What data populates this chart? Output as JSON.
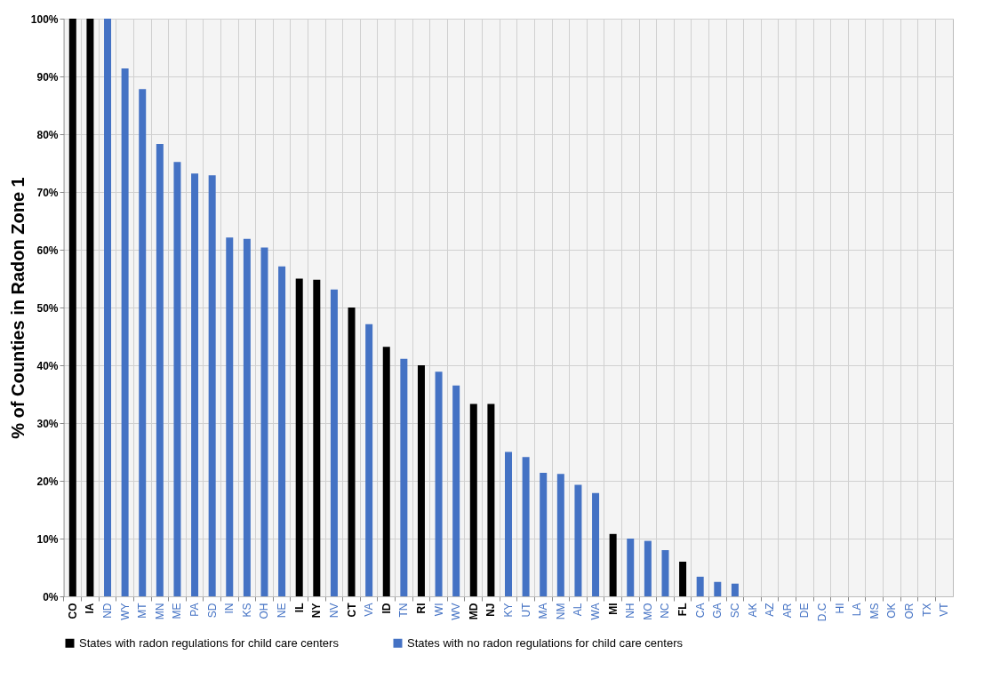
{
  "chart_data": {
    "type": "bar",
    "ylabel": "% of Counties in Radon Zone 1",
    "categories": [
      "CO",
      "IA",
      "ND",
      "WY",
      "MT",
      "MN",
      "ME",
      "PA",
      "SD",
      "IN",
      "KS",
      "OH",
      "NE",
      "IL",
      "NY",
      "NV",
      "CT",
      "VA",
      "ID",
      "TN",
      "RI",
      "WI",
      "WV",
      "MD",
      "NJ",
      "KY",
      "UT",
      "MA",
      "NM",
      "AL",
      "WA",
      "MI",
      "NH",
      "MO",
      "NC",
      "FL",
      "CA",
      "GA",
      "SC",
      "AK",
      "AZ",
      "AR",
      "DE",
      "D.C",
      "HI",
      "LA",
      "MS",
      "OK",
      "OR",
      "TX",
      "VT"
    ],
    "series": [
      {
        "name": "States with radon regulations for child care centers",
        "color": "#000000",
        "values": [
          100,
          100,
          null,
          null,
          null,
          null,
          null,
          null,
          null,
          null,
          null,
          null,
          null,
          55,
          54.8,
          null,
          50,
          null,
          43.2,
          null,
          40,
          null,
          null,
          33.3,
          33.3,
          null,
          null,
          null,
          null,
          null,
          null,
          10.8,
          null,
          null,
          null,
          6,
          null,
          null,
          null,
          null,
          null,
          null,
          null,
          null,
          null,
          null,
          null,
          null,
          null,
          null,
          null
        ]
      },
      {
        "name": "States with no radon regulations for child care centers",
        "color": "#4472c4",
        "values": [
          null,
          null,
          100,
          91.4,
          87.8,
          78.3,
          75.2,
          73.2,
          72.9,
          62.1,
          61.9,
          60.4,
          57.1,
          null,
          null,
          53.1,
          null,
          47.1,
          null,
          41.1,
          null,
          38.9,
          36.5,
          null,
          null,
          25,
          24.1,
          21.4,
          21.2,
          19.3,
          17.9,
          null,
          10,
          9.6,
          8,
          null,
          3.4,
          2.5,
          2.2,
          0,
          0,
          0,
          0,
          0,
          0,
          0,
          0,
          0,
          0,
          0,
          0
        ]
      }
    ],
    "ylim": [
      0,
      100
    ],
    "yticks": [
      {
        "value": 0,
        "label": "0%"
      },
      {
        "value": 10,
        "label": "10%"
      },
      {
        "value": 20,
        "label": "20%"
      },
      {
        "value": 30,
        "label": "30%"
      },
      {
        "value": 40,
        "label": "40%"
      },
      {
        "value": 50,
        "label": "50%"
      },
      {
        "value": 60,
        "label": "60%"
      },
      {
        "value": 70,
        "label": "70%"
      },
      {
        "value": 80,
        "label": "80%"
      },
      {
        "value": 90,
        "label": "90%"
      },
      {
        "value": 100,
        "label": "100%"
      }
    ],
    "grid": true,
    "legend": "bottom"
  }
}
